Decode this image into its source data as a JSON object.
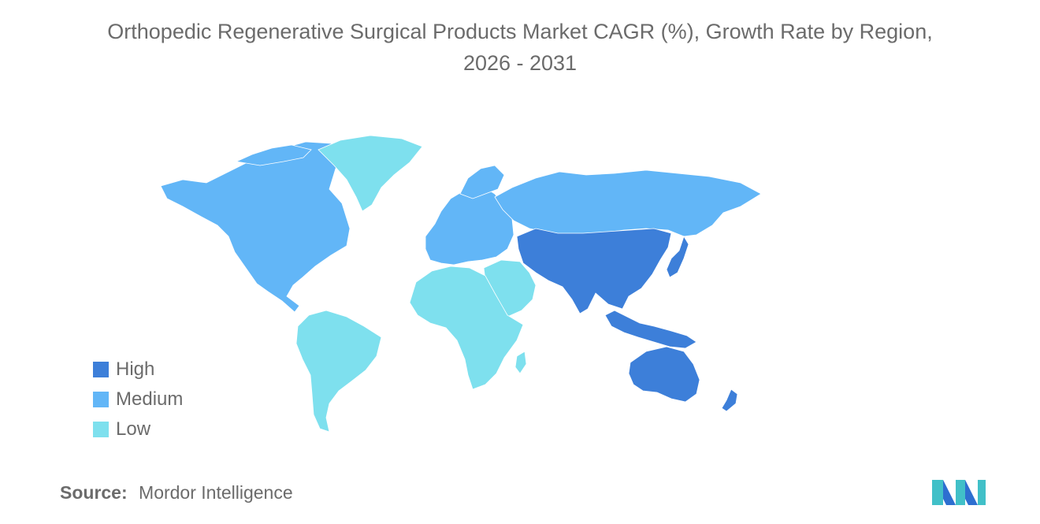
{
  "title": {
    "line1": "Orthopedic Regenerative Surgical Products Market CAGR (%), Growth Rate by Region,",
    "line2": "2026 - 2031"
  },
  "colors": {
    "high": "#3d7fd9",
    "medium": "#62b6f7",
    "low": "#7ee0ee",
    "no_data": "#a6a6a6",
    "text": "#6b6b6b",
    "logo_teal": "#41c0c8",
    "logo_blue": "#2e6fd0"
  },
  "legend": {
    "items": [
      {
        "label": "High",
        "color_key": "high"
      },
      {
        "label": "Medium",
        "color_key": "medium"
      },
      {
        "label": "Low",
        "color_key": "low"
      }
    ]
  },
  "map": {
    "regions": [
      {
        "name": "North America",
        "level": "medium"
      },
      {
        "name": "Greenland",
        "level": "low"
      },
      {
        "name": "South America",
        "level": "low"
      },
      {
        "name": "Europe",
        "level": "medium"
      },
      {
        "name": "Russia",
        "level": "medium"
      },
      {
        "name": "Middle East",
        "level": "low"
      },
      {
        "name": "Africa",
        "level": "low"
      },
      {
        "name": "Asia",
        "level": "high"
      },
      {
        "name": "Japan",
        "level": "high"
      },
      {
        "name": "Southeast Asia",
        "level": "high"
      },
      {
        "name": "Australia",
        "level": "high"
      },
      {
        "name": "New Zealand",
        "level": "high"
      }
    ]
  },
  "source": {
    "key": "Source:",
    "value": "Mordor Intelligence"
  }
}
